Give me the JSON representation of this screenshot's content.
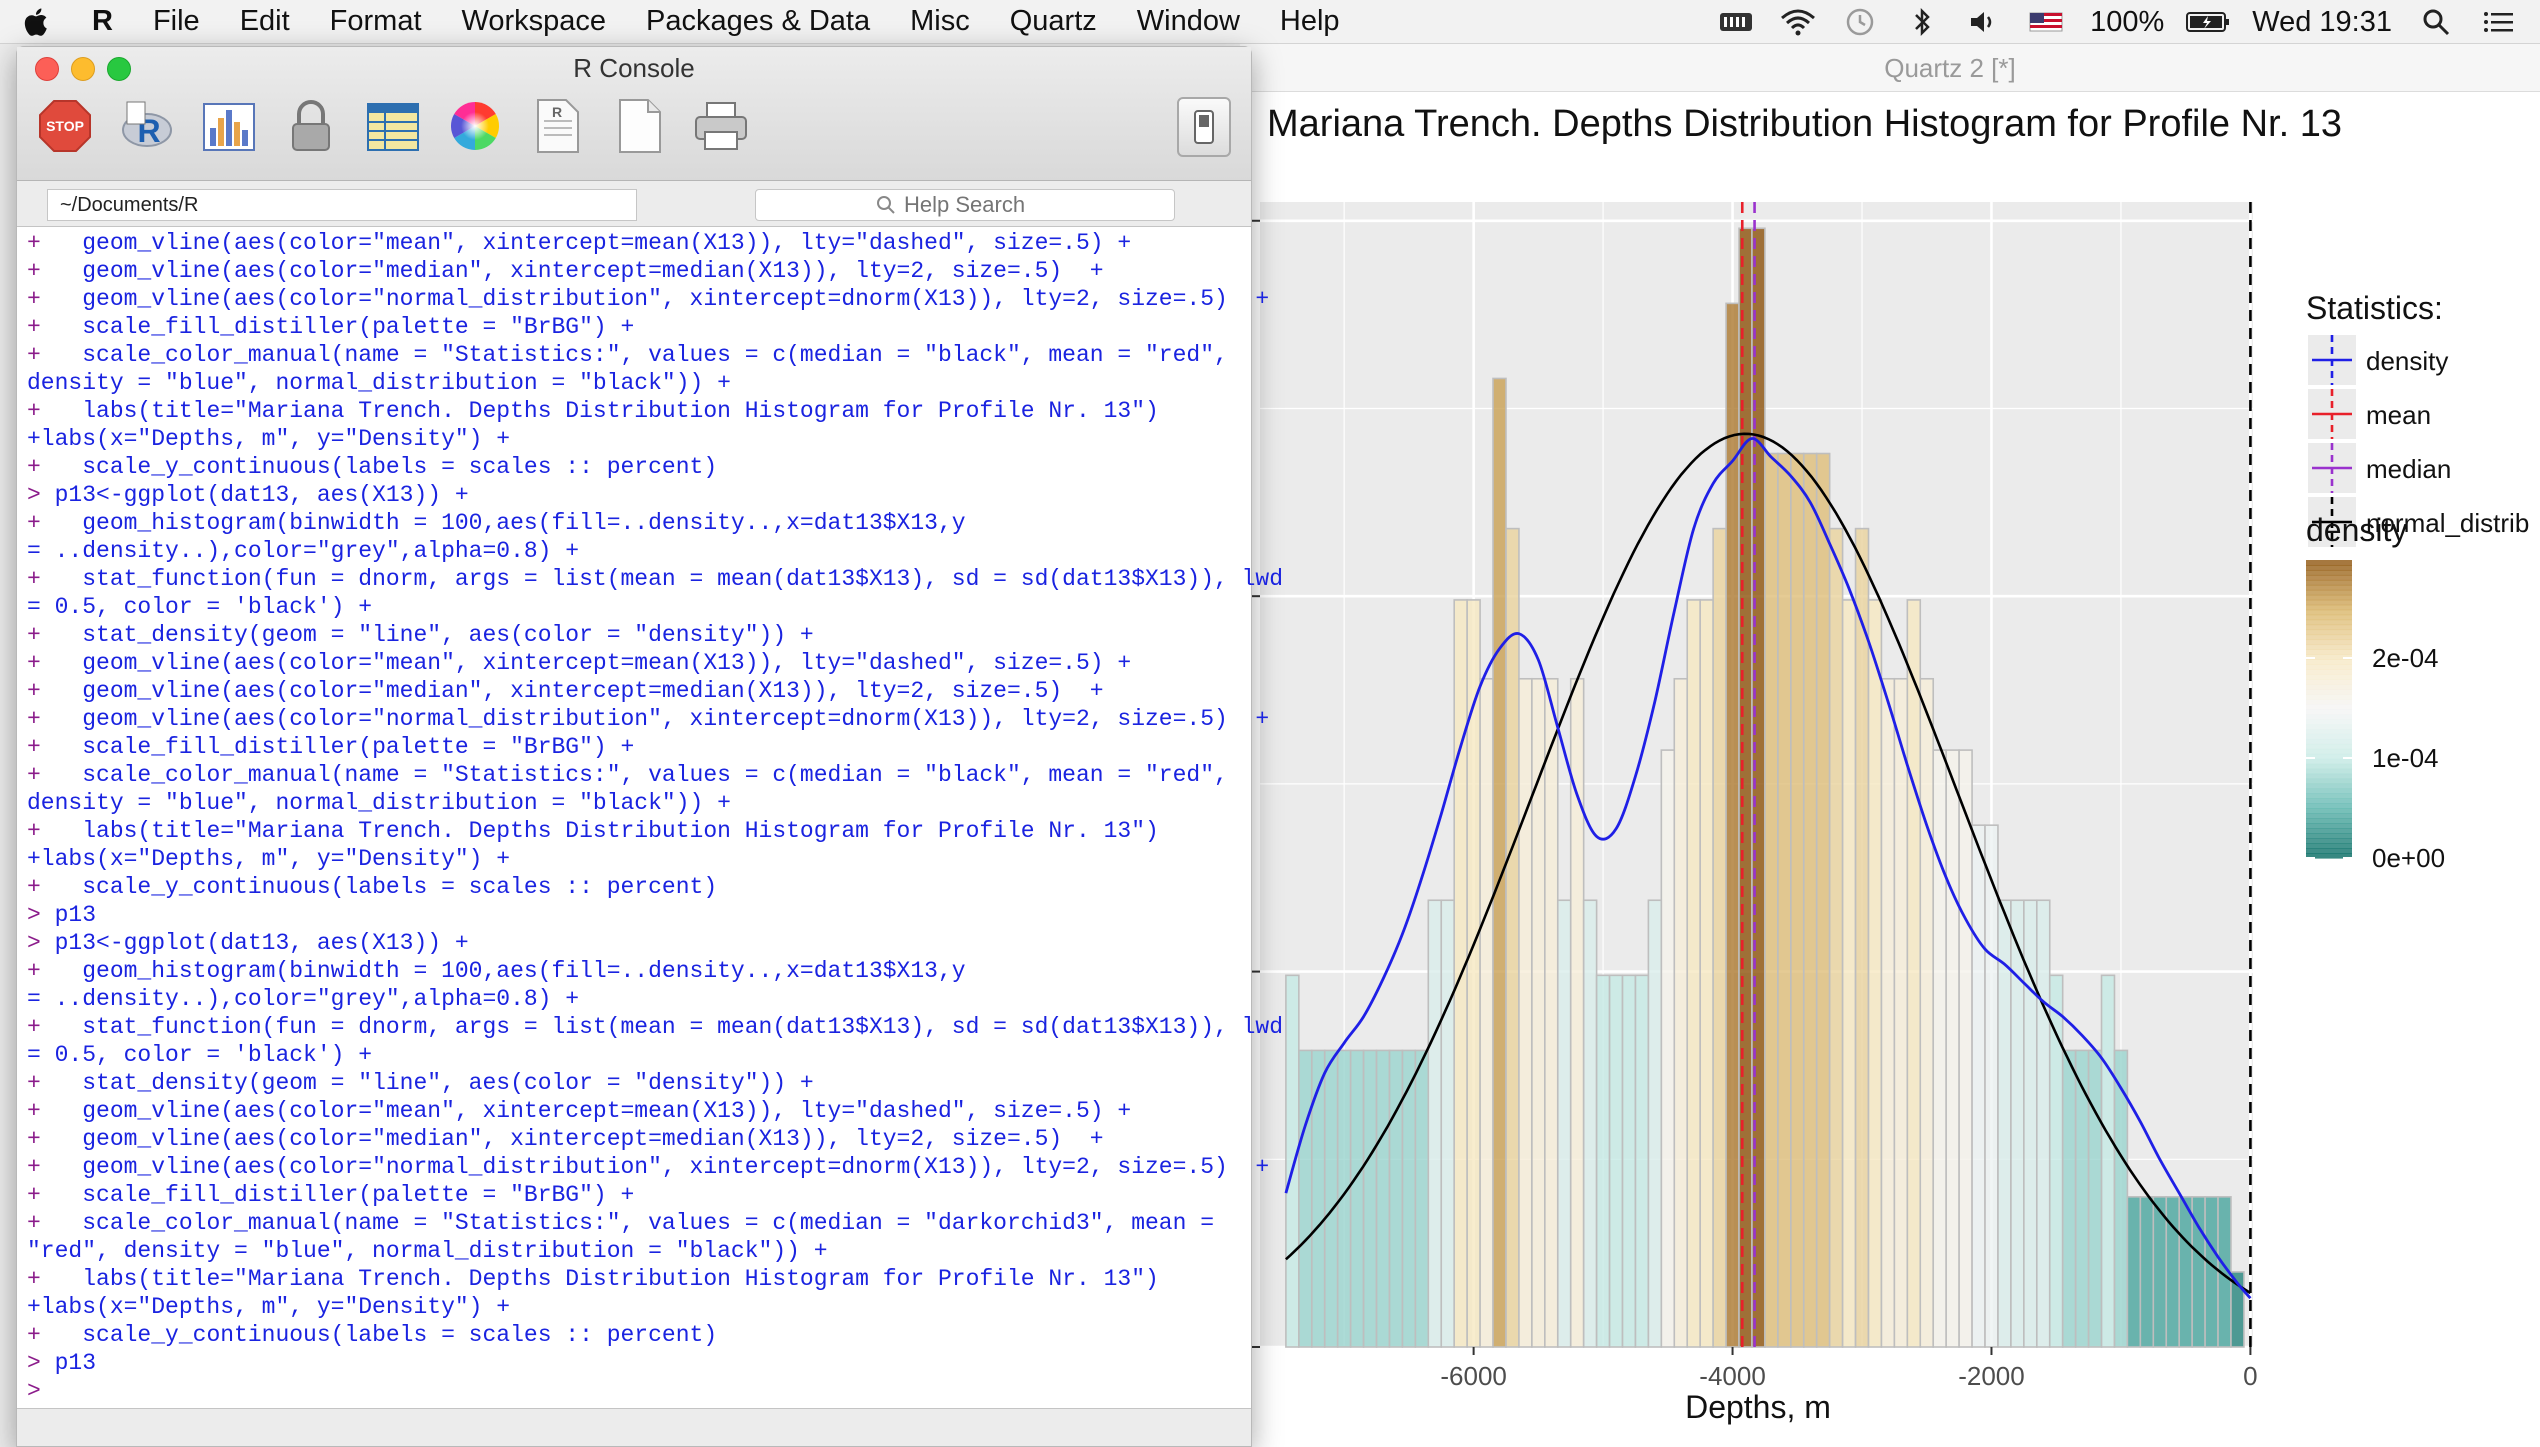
{
  "menubar": {
    "app_name": "R",
    "items": [
      "File",
      "Edit",
      "Format",
      "Workspace",
      "Packages & Data",
      "Misc",
      "Quartz",
      "Window",
      "Help"
    ],
    "battery": "100%",
    "clock": "Wed 19:31",
    "icons": [
      "apple-icon",
      "memory-icon",
      "wifi-icon",
      "time-machine-icon",
      "bluetooth-icon",
      "volume-icon",
      "flag-icon",
      "battery-icon",
      "spotlight-icon",
      "notification-list-icon"
    ]
  },
  "console": {
    "title": "R Console",
    "path": "~/Documents/R",
    "search_placeholder": "Help Search",
    "toolbar_icons": [
      "stop-icon",
      "r-source-icon",
      "chart-icon",
      "lock-icon",
      "table-icon",
      "color-wheel-icon",
      "document-script-icon",
      "new-document-icon",
      "print-icon"
    ],
    "lines": [
      {
        "p": "+",
        "t": "   geom_vline(aes(color=\"mean\", xintercept=mean(X13)), lty=\"dashed\", size=.5) +"
      },
      {
        "p": "+",
        "t": "   geom_vline(aes(color=\"median\", xintercept=median(X13)), lty=2, size=.5)  +"
      },
      {
        "p": "+",
        "t": "   geom_vline(aes(color=\"normal_distribution\", xintercept=dnorm(X13)), lty=2, size=.5)  +"
      },
      {
        "p": "+",
        "t": "   scale_fill_distiller(palette = \"BrBG\") +"
      },
      {
        "p": "+",
        "t": "   scale_color_manual(name = \"Statistics:\", values = c(median = \"black\", mean = \"red\","
      },
      {
        "p": "",
        "t": "density = \"blue\", normal_distribution = \"black\")) +"
      },
      {
        "p": "+",
        "t": "   labs(title=\"Mariana Trench. Depths Distribution Histogram for Profile Nr. 13\")"
      },
      {
        "p": "",
        "t": "+labs(x=\"Depths, m\", y=\"Density\") +"
      },
      {
        "p": "+",
        "t": "   scale_y_continuous(labels = scales :: percent)"
      },
      {
        "p": ">",
        "t": " p13<-ggplot(dat13, aes(X13)) +"
      },
      {
        "p": "+",
        "t": "   geom_histogram(binwidth = 100,aes(fill=..density..,x=dat13$X13,y"
      },
      {
        "p": "",
        "t": "= ..density..),color=\"grey\",alpha=0.8) +"
      },
      {
        "p": "+",
        "t": "   stat_function(fun = dnorm, args = list(mean = mean(dat13$X13), sd = sd(dat13$X13)), lwd"
      },
      {
        "p": "",
        "t": "= 0.5, color = 'black') +"
      },
      {
        "p": "+",
        "t": "   stat_density(geom = \"line\", aes(color = \"density\")) +"
      },
      {
        "p": "+",
        "t": "   geom_vline(aes(color=\"mean\", xintercept=mean(X13)), lty=\"dashed\", size=.5) +"
      },
      {
        "p": "+",
        "t": "   geom_vline(aes(color=\"median\", xintercept=median(X13)), lty=2, size=.5)  +"
      },
      {
        "p": "+",
        "t": "   geom_vline(aes(color=\"normal_distribution\", xintercept=dnorm(X13)), lty=2, size=.5)  +"
      },
      {
        "p": "+",
        "t": "   scale_fill_distiller(palette = \"BrBG\") +"
      },
      {
        "p": "+",
        "t": "   scale_color_manual(name = \"Statistics:\", values = c(median = \"black\", mean = \"red\","
      },
      {
        "p": "",
        "t": "density = \"blue\", normal_distribution = \"black\")) +"
      },
      {
        "p": "+",
        "t": "   labs(title=\"Mariana Trench. Depths Distribution Histogram for Profile Nr. 13\")"
      },
      {
        "p": "",
        "t": "+labs(x=\"Depths, m\", y=\"Density\") +"
      },
      {
        "p": "+",
        "t": "   scale_y_continuous(labels = scales :: percent)"
      },
      {
        "p": ">",
        "t": " p13"
      },
      {
        "p": ">",
        "t": " p13<-ggplot(dat13, aes(X13)) +"
      },
      {
        "p": "+",
        "t": "   geom_histogram(binwidth = 100,aes(fill=..density..,x=dat13$X13,y"
      },
      {
        "p": "",
        "t": "= ..density..),color=\"grey\",alpha=0.8) +"
      },
      {
        "p": "+",
        "t": "   stat_function(fun = dnorm, args = list(mean = mean(dat13$X13), sd = sd(dat13$X13)), lwd"
      },
      {
        "p": "",
        "t": "= 0.5, color = 'black') +"
      },
      {
        "p": "+",
        "t": "   stat_density(geom = \"line\", aes(color = \"density\")) +"
      },
      {
        "p": "+",
        "t": "   geom_vline(aes(color=\"mean\", xintercept=mean(X13)), lty=\"dashed\", size=.5) +"
      },
      {
        "p": "+",
        "t": "   geom_vline(aes(color=\"median\", xintercept=median(X13)), lty=2, size=.5)  +"
      },
      {
        "p": "+",
        "t": "   geom_vline(aes(color=\"normal_distribution\", xintercept=dnorm(X13)), lty=2, size=.5)  +"
      },
      {
        "p": "+",
        "t": "   scale_fill_distiller(palette = \"BrBG\") +"
      },
      {
        "p": "+",
        "t": "   scale_color_manual(name = \"Statistics:\", values = c(median = \"darkorchid3\", mean ="
      },
      {
        "p": "",
        "t": "\"red\", density = \"blue\", normal_distribution = \"black\")) +"
      },
      {
        "p": "+",
        "t": "   labs(title=\"Mariana Trench. Depths Distribution Histogram for Profile Nr. 13\")"
      },
      {
        "p": "",
        "t": "+labs(x=\"Depths, m\", y=\"Density\") +"
      },
      {
        "p": "+",
        "t": "   scale_y_continuous(labels = scales :: percent)"
      },
      {
        "p": ">",
        "t": " p13"
      },
      {
        "p": ">",
        "t": ""
      }
    ]
  },
  "quartz": {
    "window_title": "Quartz 2 [*]"
  },
  "chart_data": {
    "type": "bar",
    "title": "Mariana Trench. Depths Distribution Histogram for Profile Nr. 13",
    "xlabel": "Depths, m",
    "ylabel": "",
    "xlim": [
      -7650,
      20
    ],
    "ylim": [
      0,
      0.000305
    ],
    "binwidth": 100,
    "x_ticks": [
      -6000,
      -4000,
      -2000,
      0
    ],
    "x_tick_labels": [
      "-6000",
      "-4000",
      "-2000",
      "0"
    ],
    "y_ticks": [
      0,
      0.0001,
      0.0002,
      0.0003
    ],
    "y_tick_labels": [],
    "bins": [
      {
        "x": -7400,
        "density": 9.9e-05
      },
      {
        "x": -7300,
        "density": 7.9e-05
      },
      {
        "x": -7200,
        "density": 7.9e-05
      },
      {
        "x": -7100,
        "density": 7.9e-05
      },
      {
        "x": -7000,
        "density": 7.9e-05
      },
      {
        "x": -6900,
        "density": 7.9e-05
      },
      {
        "x": -6800,
        "density": 7.9e-05
      },
      {
        "x": -6700,
        "density": 7.9e-05
      },
      {
        "x": -6600,
        "density": 7.9e-05
      },
      {
        "x": -6500,
        "density": 7.9e-05
      },
      {
        "x": -6400,
        "density": 7.9e-05
      },
      {
        "x": -6300,
        "density": 0.000119
      },
      {
        "x": -6200,
        "density": 0.000119
      },
      {
        "x": -6100,
        "density": 0.000199
      },
      {
        "x": -6000,
        "density": 0.000199
      },
      {
        "x": -5900,
        "density": 0.000178
      },
      {
        "x": -5800,
        "density": 0.000258
      },
      {
        "x": -5700,
        "density": 0.000218
      },
      {
        "x": -5600,
        "density": 0.000178
      },
      {
        "x": -5500,
        "density": 0.000178
      },
      {
        "x": -5400,
        "density": 0.000178
      },
      {
        "x": -5300,
        "density": 0.000119
      },
      {
        "x": -5200,
        "density": 0.000178
      },
      {
        "x": -5100,
        "density": 0.000119
      },
      {
        "x": -5000,
        "density": 9.9e-05
      },
      {
        "x": -4900,
        "density": 9.9e-05
      },
      {
        "x": -4800,
        "density": 9.9e-05
      },
      {
        "x": -4700,
        "density": 9.9e-05
      },
      {
        "x": -4600,
        "density": 0.000119
      },
      {
        "x": -4500,
        "density": 0.000159
      },
      {
        "x": -4400,
        "density": 0.000178
      },
      {
        "x": -4300,
        "density": 0.000199
      },
      {
        "x": -4200,
        "density": 0.000199
      },
      {
        "x": -4100,
        "density": 0.000218
      },
      {
        "x": -4000,
        "density": 0.000278
      },
      {
        "x": -3900,
        "density": 0.000298
      },
      {
        "x": -3800,
        "density": 0.000298
      },
      {
        "x": -3700,
        "density": 0.000238
      },
      {
        "x": -3600,
        "density": 0.000238
      },
      {
        "x": -3500,
        "density": 0.000238
      },
      {
        "x": -3400,
        "density": 0.000238
      },
      {
        "x": -3300,
        "density": 0.000238
      },
      {
        "x": -3200,
        "density": 0.000218
      },
      {
        "x": -3100,
        "density": 0.000199
      },
      {
        "x": -3000,
        "density": 0.000218
      },
      {
        "x": -2900,
        "density": 0.000199
      },
      {
        "x": -2800,
        "density": 0.000178
      },
      {
        "x": -2700,
        "density": 0.000178
      },
      {
        "x": -2600,
        "density": 0.000199
      },
      {
        "x": -2500,
        "density": 0.000178
      },
      {
        "x": -2400,
        "density": 0.000159
      },
      {
        "x": -2300,
        "density": 0.000159
      },
      {
        "x": -2200,
        "density": 0.000159
      },
      {
        "x": -2100,
        "density": 0.000139
      },
      {
        "x": -2000,
        "density": 0.000139
      },
      {
        "x": -1900,
        "density": 0.000119
      },
      {
        "x": -1800,
        "density": 0.000119
      },
      {
        "x": -1700,
        "density": 0.000119
      },
      {
        "x": -1600,
        "density": 0.000119
      },
      {
        "x": -1500,
        "density": 9.9e-05
      },
      {
        "x": -1400,
        "density": 7.9e-05
      },
      {
        "x": -1300,
        "density": 7.9e-05
      },
      {
        "x": -1200,
        "density": 7.9e-05
      },
      {
        "x": -1100,
        "density": 9.9e-05
      },
      {
        "x": -1000,
        "density": 7.9e-05
      },
      {
        "x": -900,
        "density": 4e-05
      },
      {
        "x": -800,
        "density": 4e-05
      },
      {
        "x": -700,
        "density": 4e-05
      },
      {
        "x": -600,
        "density": 4e-05
      },
      {
        "x": -500,
        "density": 4e-05
      },
      {
        "x": -400,
        "density": 4e-05
      },
      {
        "x": -300,
        "density": 4e-05
      },
      {
        "x": -200,
        "density": 4e-05
      },
      {
        "x": -100,
        "density": 2e-05
      }
    ],
    "density_curve": {
      "x": [
        -7450,
        -7300,
        -7150,
        -7000,
        -6850,
        -6700,
        -6550,
        -6400,
        -6250,
        -6100,
        -5950,
        -5800,
        -5650,
        -5500,
        -5350,
        -5200,
        -5050,
        -4900,
        -4750,
        -4600,
        -4450,
        -4300,
        -4150,
        -4000,
        -3850,
        -3700,
        -3550,
        -3400,
        -3250,
        -3100,
        -2950,
        -2800,
        -2650,
        -2500,
        -2350,
        -2200,
        -2050,
        -1900,
        -1750,
        -1600,
        -1450,
        -1300,
        -1150,
        -1000,
        -850,
        -700,
        -550,
        -400,
        -250,
        -100,
        0
      ],
      "y": [
        4.1e-05,
        5.9e-05,
        7.3e-05,
        8.1e-05,
        8.8e-05,
        9.8e-05,
        0.00011,
        0.000125,
        0.000142,
        0.00016,
        0.000176,
        0.000186,
        0.00019,
        0.000183,
        0.000165,
        0.000147,
        0.000136,
        0.000138,
        0.000152,
        0.000172,
        0.000196,
        0.000218,
        0.00023,
        0.000236,
        0.000242,
        0.000237,
        0.000232,
        0.000225,
        0.000214,
        0.000202,
        0.000188,
        0.000172,
        0.000155,
        0.000139,
        0.000125,
        0.000114,
        0.000106,
        0.000102,
        9.7e-05,
        9.2e-05,
        8.8e-05,
        8.3e-05,
        7.7e-05,
        6.9e-05,
        6e-05,
        5e-05,
        4.1e-05,
        3.2e-05,
        2.4e-05,
        1.7e-05,
        1.3e-05
      ]
    },
    "normal_curve": {
      "mean": -3900,
      "sd": 1640
    },
    "vlines": [
      {
        "name": "mean",
        "x": -3925,
        "color": "#e8202a"
      },
      {
        "name": "median",
        "x": -3830,
        "color": "#9a32cd"
      },
      {
        "name": "normal_distribution",
        "x": 0,
        "color": "#000000"
      }
    ],
    "legend": {
      "title": "Statistics:",
      "items": [
        {
          "label": "density",
          "color": "#1f1fe6"
        },
        {
          "label": "mean",
          "color": "#e8202a"
        },
        {
          "label": "median",
          "color": "#9a32cd"
        },
        {
          "label": "normal_distrib",
          "color": "#000000"
        }
      ]
    },
    "fill_legend": {
      "title": "density",
      "ticks": [
        {
          "value": 0.0002,
          "label": "2e-04"
        },
        {
          "value": 0.0001,
          "label": "1e-04"
        },
        {
          "value": 0,
          "label": "0e+00"
        }
      ],
      "min": 0,
      "max": 0.000298,
      "colors": [
        "#01665e",
        "#5ab4ac",
        "#c7eae5",
        "#f5f5f5",
        "#f6e8c3",
        "#d8b365",
        "#8c510a"
      ]
    },
    "legend_position": "right",
    "grid": true
  }
}
